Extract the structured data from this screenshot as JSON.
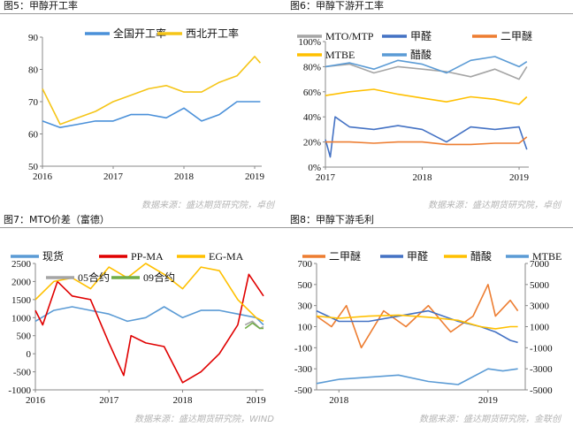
{
  "chart_data": [
    {
      "id": "p1",
      "type": "line",
      "title": "图5：甲醇开工率",
      "source": "数据来源：盛达期货研究院，卓创",
      "xlim": [
        2016.0,
        2019.1
      ],
      "x_ticks": [
        2016,
        2017,
        2018,
        2019
      ],
      "x_tick_labels": [
        "2016",
        "2017",
        "2018",
        "2019"
      ],
      "left_axis": {
        "ylim": [
          50,
          90
        ],
        "ticks": [
          50,
          60,
          70,
          80,
          90
        ],
        "tick_labels": [
          "50",
          "60",
          "70",
          "80",
          "90"
        ]
      },
      "legend_placement": "top-center",
      "series": [
        {
          "name": "全国开工率",
          "color": "#4A90D9",
          "axis": "left",
          "x": [
            2016.0,
            2016.25,
            2016.5,
            2016.75,
            2017.0,
            2017.25,
            2017.5,
            2017.75,
            2018.0,
            2018.25,
            2018.5,
            2018.75,
            2019.0,
            2019.08
          ],
          "y": [
            64,
            62,
            63,
            64,
            64,
            66,
            66,
            65,
            68,
            64,
            66,
            70,
            70,
            70
          ]
        },
        {
          "name": "西北开工率",
          "color": "#F5C518",
          "axis": "left",
          "x": [
            2016.0,
            2016.25,
            2016.5,
            2016.75,
            2017.0,
            2017.25,
            2017.5,
            2017.75,
            2018.0,
            2018.25,
            2018.5,
            2018.75,
            2019.0,
            2019.08
          ],
          "y": [
            74,
            63,
            65,
            67,
            70,
            72,
            74,
            75,
            73,
            73,
            76,
            78,
            84,
            82
          ]
        }
      ]
    },
    {
      "id": "p2",
      "type": "line",
      "title": "图6：甲醇下游开工率",
      "source": "数据来源：盛达期货研究院，卓创",
      "xlim": [
        2017.0,
        2019.1
      ],
      "x_ticks": [
        2017,
        2018,
        2019
      ],
      "x_tick_labels": [
        "2017",
        "2018",
        "2019"
      ],
      "left_axis": {
        "ylim": [
          0,
          100
        ],
        "ticks": [
          0,
          20,
          40,
          60,
          80,
          100
        ],
        "tick_labels": [
          "0%",
          "20%",
          "40%",
          "60%",
          "80%",
          "100%"
        ]
      },
      "legend_placement": "top",
      "series": [
        {
          "name": "MTO/MTP",
          "color": "#A5A5A5",
          "axis": "left",
          "x": [
            2017.0,
            2017.25,
            2017.5,
            2017.75,
            2018.0,
            2018.25,
            2018.5,
            2018.75,
            2019.0,
            2019.08
          ],
          "y": [
            80,
            82,
            75,
            80,
            78,
            76,
            72,
            78,
            70,
            80
          ]
        },
        {
          "name": "甲醛",
          "color": "#4472C4",
          "axis": "left",
          "x": [
            2017.0,
            2017.05,
            2017.1,
            2017.25,
            2017.5,
            2017.75,
            2018.0,
            2018.25,
            2018.5,
            2018.75,
            2019.0,
            2019.08
          ],
          "y": [
            22,
            8,
            40,
            32,
            30,
            33,
            30,
            20,
            32,
            30,
            32,
            14
          ]
        },
        {
          "name": "二甲醚",
          "color": "#ED7D31",
          "axis": "left",
          "x": [
            2017.0,
            2017.25,
            2017.5,
            2017.75,
            2018.0,
            2018.25,
            2018.5,
            2018.75,
            2019.0,
            2019.08
          ],
          "y": [
            20,
            20,
            19,
            20,
            20,
            18,
            18,
            19,
            19,
            24
          ]
        },
        {
          "name": "MTBE",
          "color": "#FFC000",
          "axis": "left",
          "x": [
            2017.0,
            2017.25,
            2017.5,
            2017.75,
            2018.0,
            2018.25,
            2018.5,
            2018.75,
            2019.0,
            2019.08
          ],
          "y": [
            57,
            60,
            62,
            58,
            55,
            52,
            56,
            54,
            50,
            56
          ]
        },
        {
          "name": "醋酸",
          "color": "#5B9BD5",
          "axis": "left",
          "x": [
            2017.0,
            2017.25,
            2017.5,
            2017.75,
            2018.0,
            2018.25,
            2018.5,
            2018.75,
            2019.0,
            2019.08
          ],
          "y": [
            80,
            83,
            78,
            85,
            82,
            75,
            85,
            88,
            80,
            84
          ]
        }
      ]
    },
    {
      "id": "p3",
      "type": "line",
      "title": "图7：MTO价差（富德）",
      "source": "数据来源：盛达期货研究院，WIND",
      "xlim": [
        2016.0,
        2019.1
      ],
      "x_ticks": [
        2016,
        2017,
        2018,
        2019
      ],
      "x_tick_labels": [
        "2016",
        "2017",
        "2018",
        "2019"
      ],
      "left_axis": {
        "ylim": [
          -1000,
          2500
        ],
        "ticks": [
          -1000,
          -500,
          0,
          500,
          1000,
          1500,
          2000,
          2500
        ],
        "tick_labels": [
          "-1000",
          "-500",
          "0",
          "500",
          "1000",
          "1500",
          "2000",
          "2500"
        ]
      },
      "legend_placement": "top",
      "series": [
        {
          "name": "现货",
          "color": "#5B9BD5",
          "axis": "left",
          "x": [
            2016.0,
            2016.25,
            2016.5,
            2016.75,
            2017.0,
            2017.25,
            2017.5,
            2017.75,
            2018.0,
            2018.25,
            2018.5,
            2018.75,
            2019.0,
            2019.1
          ],
          "y": [
            900,
            1200,
            1300,
            1200,
            1100,
            900,
            1000,
            1300,
            1000,
            1200,
            1200,
            1100,
            1000,
            800
          ]
        },
        {
          "name": "PP-MA",
          "color": "#E00000",
          "axis": "left",
          "x": [
            2016.0,
            2016.1,
            2016.3,
            2016.5,
            2016.75,
            2017.0,
            2017.2,
            2017.3,
            2017.5,
            2017.75,
            2018.0,
            2018.25,
            2018.5,
            2018.75,
            2018.9,
            2019.1
          ],
          "y": [
            1200,
            800,
            2000,
            1600,
            1500,
            300,
            -600,
            500,
            300,
            200,
            -800,
            -500,
            0,
            800,
            2200,
            1600
          ]
        },
        {
          "name": "EG-MA",
          "color": "#FFC000",
          "axis": "left",
          "x": [
            2016.0,
            2016.25,
            2016.5,
            2016.75,
            2017.0,
            2017.25,
            2017.5,
            2017.75,
            2018.0,
            2018.25,
            2018.5,
            2018.75,
            2019.0,
            2019.1
          ],
          "y": [
            1500,
            2000,
            2100,
            1800,
            2400,
            2100,
            2500,
            2200,
            1800,
            2400,
            2300,
            1500,
            1000,
            900
          ]
        },
        {
          "name": "05合约",
          "color": "#A5A5A5",
          "axis": "left",
          "x": [
            2018.85,
            2018.95,
            2019.05,
            2019.1
          ],
          "y": [
            800,
            900,
            700,
            750
          ]
        },
        {
          "name": "09合约",
          "color": "#70AD47",
          "axis": "left",
          "x": [
            2018.85,
            2018.95,
            2019.05,
            2019.1
          ],
          "y": [
            700,
            850,
            700,
            700
          ]
        }
      ]
    },
    {
      "id": "p4",
      "type": "line",
      "title": "图8：甲醇下游毛利",
      "source": "数据来源：盛达期货研究院，金联创",
      "xlim": [
        2017.85,
        2019.25
      ],
      "x_ticks": [
        2018,
        2019
      ],
      "x_tick_labels": [
        "2018",
        "2019"
      ],
      "left_axis": {
        "ylim": [
          -500,
          700
        ],
        "ticks": [
          -500,
          -300,
          -100,
          100,
          300,
          500,
          700
        ],
        "tick_labels": [
          "-500",
          "-300",
          "-100",
          "100",
          "300",
          "500",
          "700"
        ]
      },
      "right_axis": {
        "ylim": [
          -5000,
          7000
        ],
        "ticks": [
          -5000,
          -3000,
          -1000,
          1000,
          3000,
          5000,
          7000
        ],
        "tick_labels": [
          "-5000",
          "-3000",
          "-1000",
          "1000",
          "3000",
          "5000",
          "7000"
        ]
      },
      "legend_placement": "top",
      "series": [
        {
          "name": "二甲醚",
          "color": "#ED7D31",
          "axis": "left",
          "x": [
            2017.85,
            2017.95,
            2018.05,
            2018.15,
            2018.3,
            2018.45,
            2018.6,
            2018.75,
            2018.9,
            2019.0,
            2019.05,
            2019.15,
            2019.2
          ],
          "y": [
            200,
            100,
            300,
            -100,
            250,
            100,
            300,
            50,
            200,
            500,
            200,
            350,
            250
          ]
        },
        {
          "name": "甲醛",
          "color": "#4472C4",
          "axis": "left",
          "x": [
            2017.85,
            2018.0,
            2018.2,
            2018.4,
            2018.6,
            2018.8,
            2018.95,
            2019.05,
            2019.15,
            2019.2
          ],
          "y": [
            250,
            150,
            150,
            200,
            250,
            150,
            100,
            50,
            -30,
            -50
          ]
        },
        {
          "name": "醋酸",
          "color": "#FFC000",
          "axis": "right",
          "x": [
            2017.85,
            2018.0,
            2018.2,
            2018.4,
            2018.6,
            2018.8,
            2018.95,
            2019.05,
            2019.15,
            2019.2
          ],
          "y": [
            2000,
            1800,
            2000,
            2100,
            1900,
            1600,
            1000,
            800,
            1000,
            1000
          ]
        },
        {
          "name": "MTBE",
          "color": "#5B9BD5",
          "axis": "right",
          "x": [
            2017.85,
            2018.0,
            2018.2,
            2018.4,
            2018.6,
            2018.8,
            2019.0,
            2019.1,
            2019.2
          ],
          "y": [
            -4400,
            -4000,
            -3800,
            -3600,
            -4200,
            -4500,
            -3000,
            -3200,
            -3000
          ]
        }
      ]
    }
  ]
}
